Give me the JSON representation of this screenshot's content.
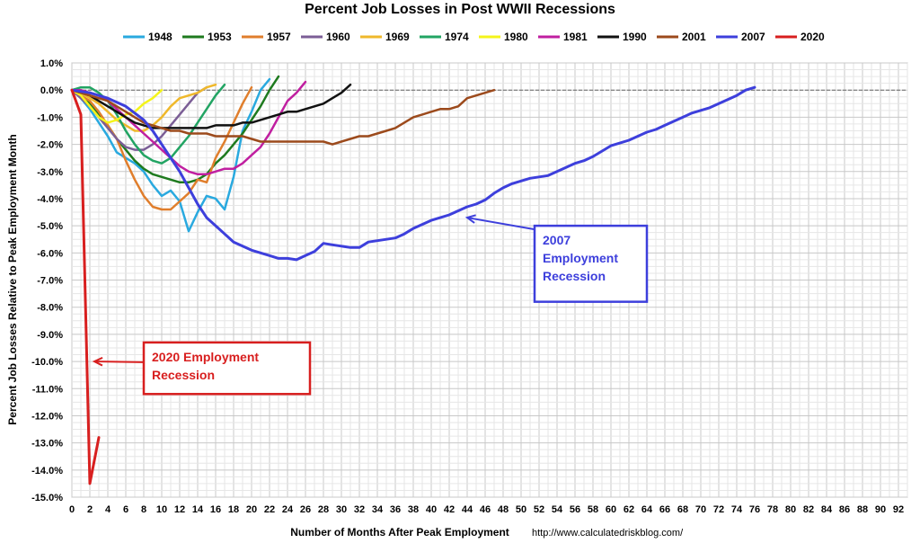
{
  "chart_data": {
    "type": "line",
    "title": "Percent Job Losses in Post WWII Recessions",
    "xlabel": "Number of Months After Peak Employment",
    "ylabel": "Percent Job Losses Relative to Peak Employment Month",
    "source": "http://www.calculatedriskblog.com/",
    "xlim": [
      0,
      93
    ],
    "ylim": [
      -15,
      1
    ],
    "x_ticks": [
      0,
      2,
      4,
      6,
      8,
      10,
      12,
      14,
      16,
      18,
      20,
      22,
      24,
      26,
      28,
      30,
      32,
      34,
      36,
      38,
      40,
      42,
      44,
      46,
      48,
      50,
      52,
      54,
      56,
      58,
      60,
      62,
      64,
      66,
      68,
      70,
      72,
      74,
      76,
      78,
      80,
      82,
      84,
      86,
      88,
      90,
      92
    ],
    "y_ticks": [
      1,
      0,
      -1,
      -2,
      -3,
      -4,
      -5,
      -6,
      -7,
      -8,
      -9,
      -10,
      -11,
      -12,
      -13,
      -14,
      -15
    ],
    "y_tick_labels": [
      "1.0%",
      "0.0%",
      "-1.0%",
      "-2.0%",
      "-3.0%",
      "-4.0%",
      "-5.0%",
      "-6.0%",
      "-7.0%",
      "-8.0%",
      "-9.0%",
      "-10.0%",
      "-11.0%",
      "-12.0%",
      "-13.0%",
      "-14.0%",
      "-15.0%"
    ],
    "grid": true,
    "legend_position": "top",
    "series": [
      {
        "name": "1948",
        "color": "#29a9df",
        "values": [
          0,
          -0.3,
          -0.7,
          -1.2,
          -1.7,
          -2.3,
          -2.5,
          -2.7,
          -3.0,
          -3.5,
          -3.9,
          -3.7,
          -4.1,
          -5.2,
          -4.5,
          -3.9,
          -4.0,
          -4.4,
          -3.2,
          -1.5,
          -0.8,
          0,
          0.4
        ]
      },
      {
        "name": "1953",
        "color": "#1e7a1e",
        "values": [
          0,
          -0.2,
          -0.5,
          -0.9,
          -1.3,
          -1.8,
          -2.2,
          -2.6,
          -2.9,
          -3.1,
          -3.2,
          -3.3,
          -3.4,
          -3.4,
          -3.3,
          -3.1,
          -2.7,
          -2.4,
          -2.0,
          -1.6,
          -1.1,
          -0.6,
          0,
          0.5
        ]
      },
      {
        "name": "1957",
        "color": "#e07e2c",
        "values": [
          0,
          -0.2,
          -0.4,
          -0.8,
          -1.3,
          -1.8,
          -2.6,
          -3.3,
          -3.9,
          -4.3,
          -4.4,
          -4.4,
          -4.1,
          -3.8,
          -3.3,
          -3.4,
          -2.5,
          -1.9,
          -1.2,
          -0.5,
          0.1
        ]
      },
      {
        "name": "1960",
        "color": "#7b5e96",
        "values": [
          0,
          -0.3,
          -0.6,
          -1.0,
          -1.4,
          -1.8,
          -2.1,
          -2.2,
          -2.2,
          -2.0,
          -1.7,
          -1.3,
          -0.9,
          -0.5,
          -0.1,
          0.1
        ]
      },
      {
        "name": "1969",
        "color": "#efb82b",
        "values": [
          0,
          -0.1,
          -0.3,
          -0.5,
          -0.8,
          -1.1,
          -1.3,
          -1.5,
          -1.5,
          -1.3,
          -1.0,
          -0.6,
          -0.3,
          -0.2,
          -0.1,
          0.1,
          0.2
        ]
      },
      {
        "name": "1974",
        "color": "#22a463",
        "values": [
          0,
          0.1,
          0.1,
          -0.1,
          -0.4,
          -0.9,
          -1.5,
          -2.0,
          -2.4,
          -2.6,
          -2.7,
          -2.5,
          -2.1,
          -1.7,
          -1.2,
          -0.7,
          -0.2,
          0.2
        ]
      },
      {
        "name": "1980",
        "color": "#f4f41a",
        "values": [
          0,
          -0.2,
          -0.6,
          -1.0,
          -1.2,
          -1.1,
          -0.9,
          -0.8,
          -0.5,
          -0.3,
          0
        ]
      },
      {
        "name": "1981",
        "color": "#c01fa0",
        "values": [
          0,
          0,
          -0.1,
          -0.2,
          -0.4,
          -0.7,
          -1.0,
          -1.3,
          -1.6,
          -1.9,
          -2.2,
          -2.5,
          -2.8,
          -3.0,
          -3.1,
          -3.1,
          -3.0,
          -2.9,
          -2.9,
          -2.7,
          -2.4,
          -2.1,
          -1.6,
          -1.0,
          -0.4,
          -0.1,
          0.3
        ]
      },
      {
        "name": "1990",
        "color": "#111111",
        "values": [
          0,
          -0.1,
          -0.2,
          -0.4,
          -0.6,
          -0.8,
          -1.0,
          -1.2,
          -1.3,
          -1.4,
          -1.4,
          -1.4,
          -1.4,
          -1.4,
          -1.4,
          -1.4,
          -1.3,
          -1.3,
          -1.3,
          -1.2,
          -1.2,
          -1.1,
          -1.0,
          -0.9,
          -0.8,
          -0.8,
          -0.7,
          -0.6,
          -0.5,
          -0.3,
          -0.1,
          0.2
        ]
      },
      {
        "name": "2001",
        "color": "#9c4a1c",
        "values": [
          0,
          -0.1,
          -0.2,
          -0.3,
          -0.4,
          -0.6,
          -0.8,
          -1.0,
          -1.2,
          -1.3,
          -1.4,
          -1.5,
          -1.5,
          -1.6,
          -1.6,
          -1.6,
          -1.7,
          -1.7,
          -1.7,
          -1.7,
          -1.8,
          -1.9,
          -1.9,
          -1.9,
          -1.9,
          -1.9,
          -1.9,
          -1.9,
          -1.9,
          -2.0,
          -1.9,
          -1.8,
          -1.7,
          -1.7,
          -1.6,
          -1.5,
          -1.4,
          -1.2,
          -1.0,
          -0.9,
          -0.8,
          -0.7,
          -0.7,
          -0.6,
          -0.3,
          -0.2,
          -0.1,
          0
        ]
      },
      {
        "name": "2007",
        "color": "#3d3fdc",
        "values": [
          0,
          -0.05,
          -0.1,
          -0.2,
          -0.3,
          -0.45,
          -0.6,
          -0.85,
          -1.1,
          -1.5,
          -2.0,
          -2.5,
          -3.0,
          -3.6,
          -4.2,
          -4.7,
          -5.0,
          -5.3,
          -5.6,
          -5.75,
          -5.9,
          -6.0,
          -6.1,
          -6.2,
          -6.2,
          -6.25,
          -6.1,
          -5.95,
          -5.65,
          -5.7,
          -5.75,
          -5.8,
          -5.8,
          -5.6,
          -5.55,
          -5.5,
          -5.45,
          -5.3,
          -5.1,
          -4.95,
          -4.8,
          -4.7,
          -4.6,
          -4.45,
          -4.3,
          -4.2,
          -4.05,
          -3.8,
          -3.6,
          -3.45,
          -3.35,
          -3.25,
          -3.2,
          -3.15,
          -3.0,
          -2.85,
          -2.7,
          -2.6,
          -2.45,
          -2.25,
          -2.05,
          -1.95,
          -1.85,
          -1.7,
          -1.55,
          -1.45,
          -1.3,
          -1.15,
          -1.0,
          -0.85,
          -0.75,
          -0.65,
          -0.5,
          -0.35,
          -0.2,
          0,
          0.1
        ]
      },
      {
        "name": "2020",
        "color": "#d81f1f",
        "values": [
          0,
          -0.9,
          -14.5,
          -12.8
        ]
      }
    ],
    "annotations": [
      {
        "lines": [
          "2007",
          "Employment",
          "Recession"
        ],
        "color": "#3d3fdc",
        "arrow_to": [
          44,
          -4.7
        ],
        "box_data": [
          51.5,
          -5.0,
          64,
          -7.8
        ]
      },
      {
        "lines": [
          "2020 Employment",
          "Recession"
        ],
        "color": "#d81f1f",
        "arrow_to": [
          2.5,
          -10.0
        ],
        "box_data": [
          8,
          -9.3,
          26.5,
          -11.2
        ]
      }
    ]
  }
}
